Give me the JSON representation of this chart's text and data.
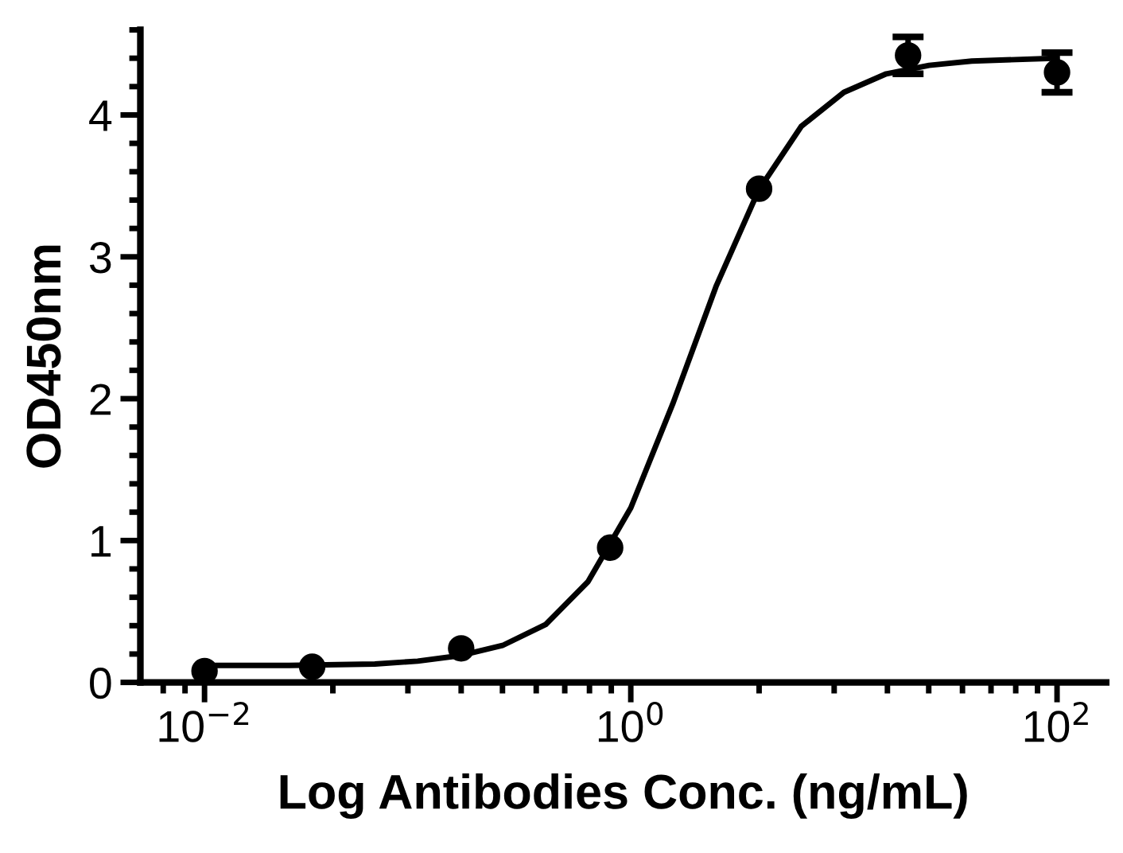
{
  "chart_data": {
    "type": "scatter",
    "xlabel": "Log Antibodies Conc. (ng/mL)",
    "ylabel": "OD450nm",
    "log": "x",
    "grid": false,
    "marker": "circle",
    "xlim": [
      0.005,
      170
    ],
    "xticks": [
      {
        "value": 0.01,
        "label": "10$^{−2}$"
      },
      {
        "value": 1,
        "label": "10$^{0}$"
      },
      {
        "value": 100,
        "label": "10$^{2}$"
      }
    ],
    "ylim": [
      0,
      4.6
    ],
    "yticks": [
      0,
      1,
      2,
      3,
      4
    ],
    "series": [
      {
        "color": "#000000",
        "x": [
          0.01,
          0.032,
          0.16,
          0.8,
          4,
          20,
          100
        ],
        "values": [
          0.08,
          0.11,
          0.24,
          0.95,
          3.48,
          4.42,
          4.3
        ],
        "errors": [
          null,
          null,
          null,
          null,
          null,
          0.13,
          0.14
        ]
      },
      {
        "type": "line",
        "color": "#000000",
        "line_style": "solid",
        "marker": "none",
        "x": [
          0.01,
          0.025,
          0.063,
          0.1,
          0.16,
          0.25,
          0.4,
          0.63,
          1,
          1.58,
          2.51,
          3.98,
          6.31,
          10,
          15.8,
          25.1,
          39.8,
          100
        ],
        "values": [
          0.12,
          0.12,
          0.13,
          0.15,
          0.19,
          0.26,
          0.41,
          0.71,
          1.23,
          1.97,
          2.79,
          3.47,
          3.92,
          4.16,
          4.29,
          4.35,
          4.38,
          4.4
        ]
      }
    ]
  }
}
